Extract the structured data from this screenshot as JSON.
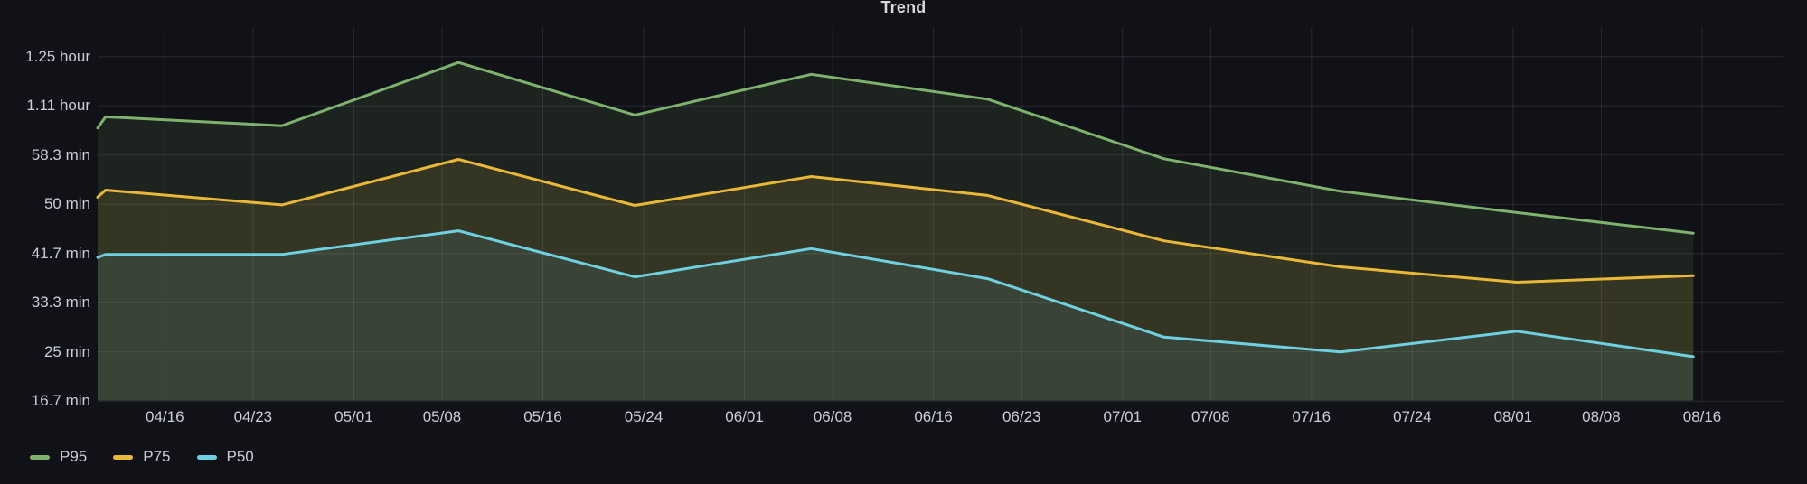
{
  "panel": {
    "title": "Trend",
    "background_color": "#111217",
    "text_color": "#CCCCDC",
    "grid_color": "rgba(204,204,220,0.13)"
  },
  "legend": {
    "position": "bottom-left",
    "items": [
      {
        "label": "P95",
        "color": "#7EB26D"
      },
      {
        "label": "P75",
        "color": "#EAB839"
      },
      {
        "label": "P50",
        "color": "#6ED0E0"
      }
    ]
  },
  "chart_data": {
    "type": "line",
    "title": "Trend",
    "unit": "minutes",
    "grid": true,
    "area_fill": true,
    "legend_position": "bottom-left",
    "x_axis": {
      "kind": "time",
      "tick_labels": [
        "04/16",
        "04/23",
        "05/01",
        "05/08",
        "05/16",
        "05/24",
        "06/01",
        "06/08",
        "06/16",
        "06/23",
        "07/01",
        "07/08",
        "07/16",
        "07/24",
        "08/01",
        "08/08",
        "08/16"
      ],
      "tick_day_offsets": [
        0,
        7,
        15,
        22,
        30,
        38,
        46,
        53,
        61,
        68,
        76,
        83,
        91,
        99,
        107,
        114,
        122
      ]
    },
    "y_axis": {
      "tick_labels": [
        "1.25 hour",
        "1.11 hour",
        "58.3 min",
        "50 min",
        "41.7 min",
        "33.3 min",
        "25 min",
        "16.7 min"
      ],
      "tick_values_min": [
        75,
        66.667,
        58.333,
        50,
        41.667,
        33.333,
        25,
        16.667
      ],
      "range_min": [
        16.67,
        80
      ]
    },
    "x_dates_estimated": [
      "04/11",
      "04/25",
      "05/09",
      "05/23",
      "06/06",
      "06/20",
      "07/04",
      "07/18",
      "08/01",
      "08/15"
    ],
    "x_day_offsets": [
      -4.7,
      9.3,
      23.3,
      37.3,
      51.3,
      65.3,
      79.3,
      93.3,
      107.3,
      121.3
    ],
    "series": [
      {
        "name": "P95",
        "color": "#7EB26D",
        "edge_start_min": 62.9,
        "values_min": [
          64.8,
          63.3,
          74.0,
          65.1,
          72.0,
          67.8,
          57.7,
          52.2,
          48.6,
          45.1
        ]
      },
      {
        "name": "P75",
        "color": "#EAB839",
        "edge_start_min": 51.2,
        "values_min": [
          52.4,
          49.9,
          57.6,
          49.8,
          54.7,
          51.5,
          43.8,
          39.4,
          36.8,
          37.9
        ]
      },
      {
        "name": "P50",
        "color": "#6ED0E0",
        "edge_start_min": 41.0,
        "values_min": [
          41.5,
          41.5,
          45.5,
          37.7,
          42.5,
          37.4,
          27.5,
          25.0,
          28.5,
          24.2
        ]
      }
    ]
  }
}
